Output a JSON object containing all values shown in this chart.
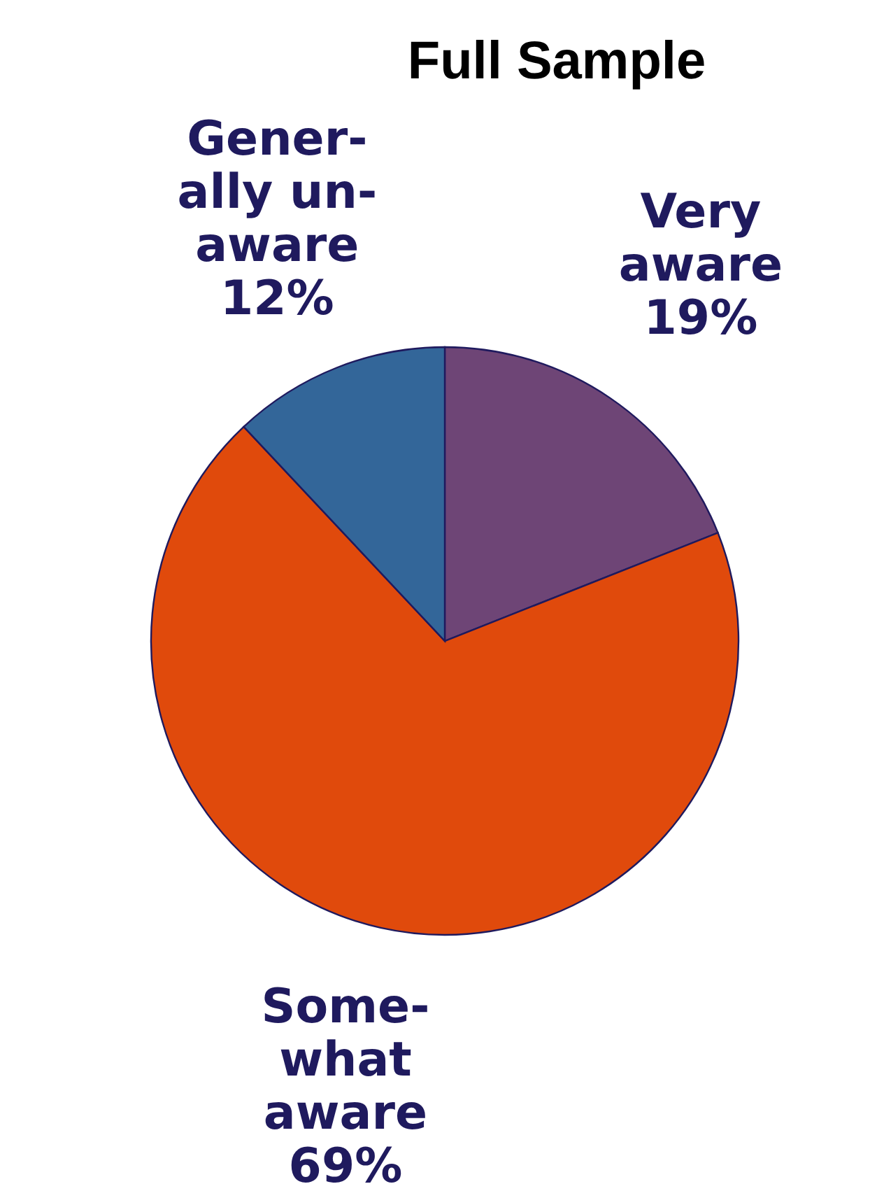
{
  "chart_data": {
    "type": "pie",
    "title": "Full Sample",
    "categories": [
      "Very\naware",
      "Some-\nwhat\naware",
      "Gener-\nally un-\naware"
    ],
    "values": [
      19,
      69,
      12
    ],
    "colors": [
      "#6e4576",
      "#e04a0c",
      "#336699"
    ],
    "value_labels": [
      "19%",
      "69%",
      "12%"
    ]
  }
}
